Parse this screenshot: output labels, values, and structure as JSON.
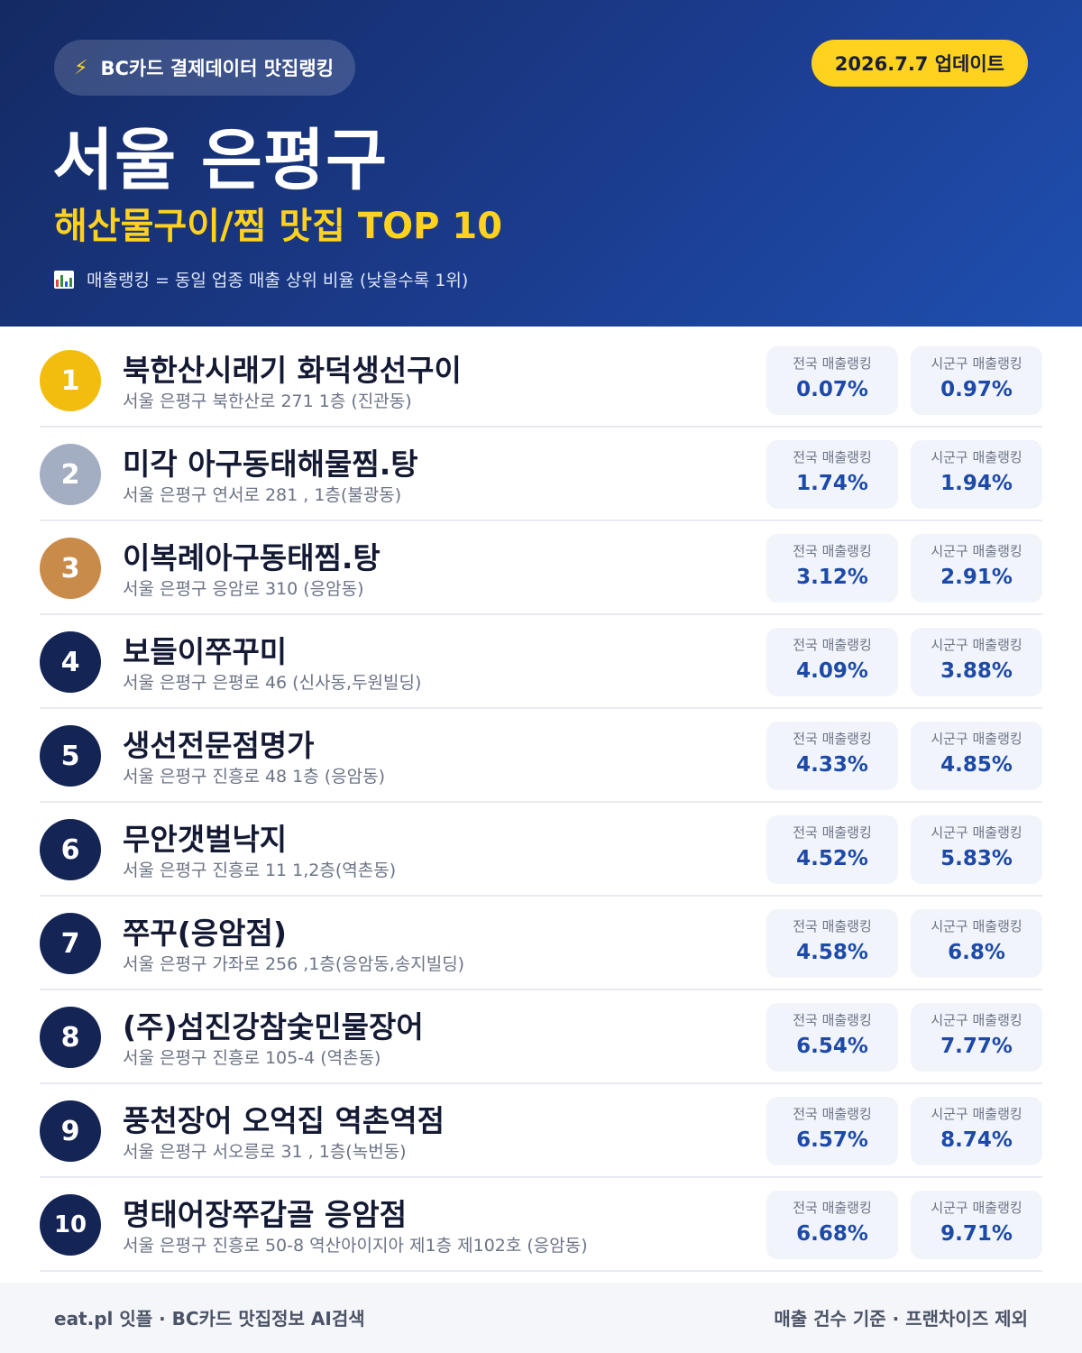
{
  "header": {
    "source_badge": "BC카드 결제데이터 맛집랭킹",
    "source_icon": "lightning-icon",
    "update_badge": "2026.7.7 업데이트",
    "title": "서울 은평구",
    "subtitle": "해산물구이/찜 맛집 TOP 10",
    "note": "매출랭킹 = 동일 업종 매출 상위 비율 (낮을수록 1위)",
    "note_icon": "bar-chart-icon"
  },
  "labels": {
    "national": "전국 매출랭킹",
    "local": "시군구 매출랭킹"
  },
  "colors": {
    "gold": "#f2bd0f",
    "silver": "#a4aec3",
    "bronze": "#c98b4a",
    "navy": "#142454",
    "accent_yellow": "#ffd21f",
    "value_blue": "#1d4aa8"
  },
  "restaurants": [
    {
      "rank": "1",
      "name": "북한산시래기 화덕생선구이",
      "address": "서울 은평구 북한산로 271 1층 (진관동)",
      "national": "0.07%",
      "local": "0.97%"
    },
    {
      "rank": "2",
      "name": "미각 아구동태해물찜.탕",
      "address": "서울 은평구 연서로 281 , 1층(불광동)",
      "national": "1.74%",
      "local": "1.94%"
    },
    {
      "rank": "3",
      "name": "이복례아구동태찜.탕",
      "address": "서울 은평구 응암로 310 (응암동)",
      "national": "3.12%",
      "local": "2.91%"
    },
    {
      "rank": "4",
      "name": "보들이쭈꾸미",
      "address": "서울 은평구 은평로 46 (신사동,두원빌딩)",
      "national": "4.09%",
      "local": "3.88%"
    },
    {
      "rank": "5",
      "name": "생선전문점명가",
      "address": "서울 은평구 진흥로 48 1층 (응암동)",
      "national": "4.33%",
      "local": "4.85%"
    },
    {
      "rank": "6",
      "name": "무안갯벌낙지",
      "address": "서울 은평구 진흥로 11 1,2층(역촌동)",
      "national": "4.52%",
      "local": "5.83%"
    },
    {
      "rank": "7",
      "name": "쭈꾸(응암점)",
      "address": "서울 은평구 가좌로 256 ,1층(응암동,송지빌딩)",
      "national": "4.58%",
      "local": "6.8%"
    },
    {
      "rank": "8",
      "name": "(주)섬진강참숯민물장어",
      "address": "서울 은평구 진흥로 105-4 (역촌동)",
      "national": "6.54%",
      "local": "7.77%"
    },
    {
      "rank": "9",
      "name": "풍천장어 오억집 역촌역점",
      "address": "서울 은평구 서오릉로 31 , 1층(녹번동)",
      "national": "6.57%",
      "local": "8.74%"
    },
    {
      "rank": "10",
      "name": "명태어장쭈갑골 응암점",
      "address": "서울 은평구 진흥로 50-8 역산아이지아 제1층 제102호 (응암동)",
      "national": "6.68%",
      "local": "9.71%"
    }
  ],
  "footer": {
    "left": "eat.pl 잇플 · BC카드 맛집정보 AI검색",
    "right": "매출 건수 기준 · 프랜차이즈 제외"
  }
}
